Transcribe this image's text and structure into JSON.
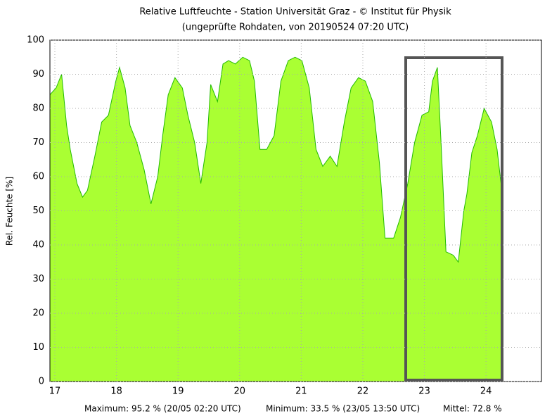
{
  "chart_data": {
    "type": "area",
    "title": "Relative Luftfeuchte - Station Universität Graz -  © Institut für Physik",
    "subtitle": "(ungeprüfte Rohdaten, von 20190524 07:20 UTC)",
    "y_label": "Rel. Feuchte [%]",
    "footer": [
      "Maximum: 95.2 % (20/05 02:20 UTC)",
      "Minimum: 33.5 % (23/05 13:50 UTC)",
      "Mittel: 72.8 %"
    ],
    "x": [
      16.92,
      17.02,
      17.11,
      17.19,
      17.25,
      17.36,
      17.45,
      17.53,
      17.65,
      17.76,
      17.87,
      17.99,
      18.05,
      18.14,
      18.22,
      18.33,
      18.45,
      18.56,
      18.67,
      18.75,
      18.84,
      18.95,
      19.07,
      19.16,
      19.27,
      19.37,
      19.47,
      19.53,
      19.64,
      19.73,
      19.82,
      19.93,
      20.05,
      20.16,
      20.24,
      20.33,
      20.44,
      20.56,
      20.67,
      20.79,
      20.9,
      21.01,
      21.13,
      21.24,
      21.35,
      21.47,
      21.58,
      21.7,
      21.81,
      21.93,
      22.04,
      22.16,
      22.27,
      22.36,
      22.5,
      22.61,
      22.73,
      22.84,
      22.96,
      23.07,
      23.13,
      23.21,
      23.27,
      23.35,
      23.47,
      23.55,
      23.64,
      23.69,
      23.77,
      23.86,
      23.97,
      24.09,
      24.18,
      24.25
    ],
    "series": [
      {
        "name": "Rel. Feuchte",
        "color": "#22bb00",
        "fill": "#aaff33",
        "values": [
          84,
          86,
          90,
          75,
          68,
          58,
          54,
          56,
          66,
          76,
          78,
          88,
          92,
          86,
          75,
          70,
          62,
          52,
          60,
          72,
          84,
          89,
          86,
          78,
          70,
          58,
          70,
          87,
          82,
          93,
          94,
          93,
          95,
          94,
          88,
          68,
          68,
          72,
          88,
          94,
          95,
          94,
          86,
          68,
          63,
          66,
          63,
          76,
          86,
          89,
          88,
          82,
          64,
          42,
          42,
          48,
          58,
          70,
          78,
          79,
          88,
          92,
          70,
          38,
          37,
          35,
          50,
          55,
          67,
          72,
          80,
          76,
          68,
          57
        ]
      }
    ],
    "xlim": [
      16.92,
      24.9
    ],
    "ylim": [
      0,
      100
    ],
    "xticks": [
      17,
      18,
      19,
      20,
      21,
      22,
      23,
      24
    ],
    "yticks": [
      0,
      10,
      20,
      30,
      40,
      50,
      60,
      70,
      80,
      90,
      100
    ],
    "grid": true
  }
}
